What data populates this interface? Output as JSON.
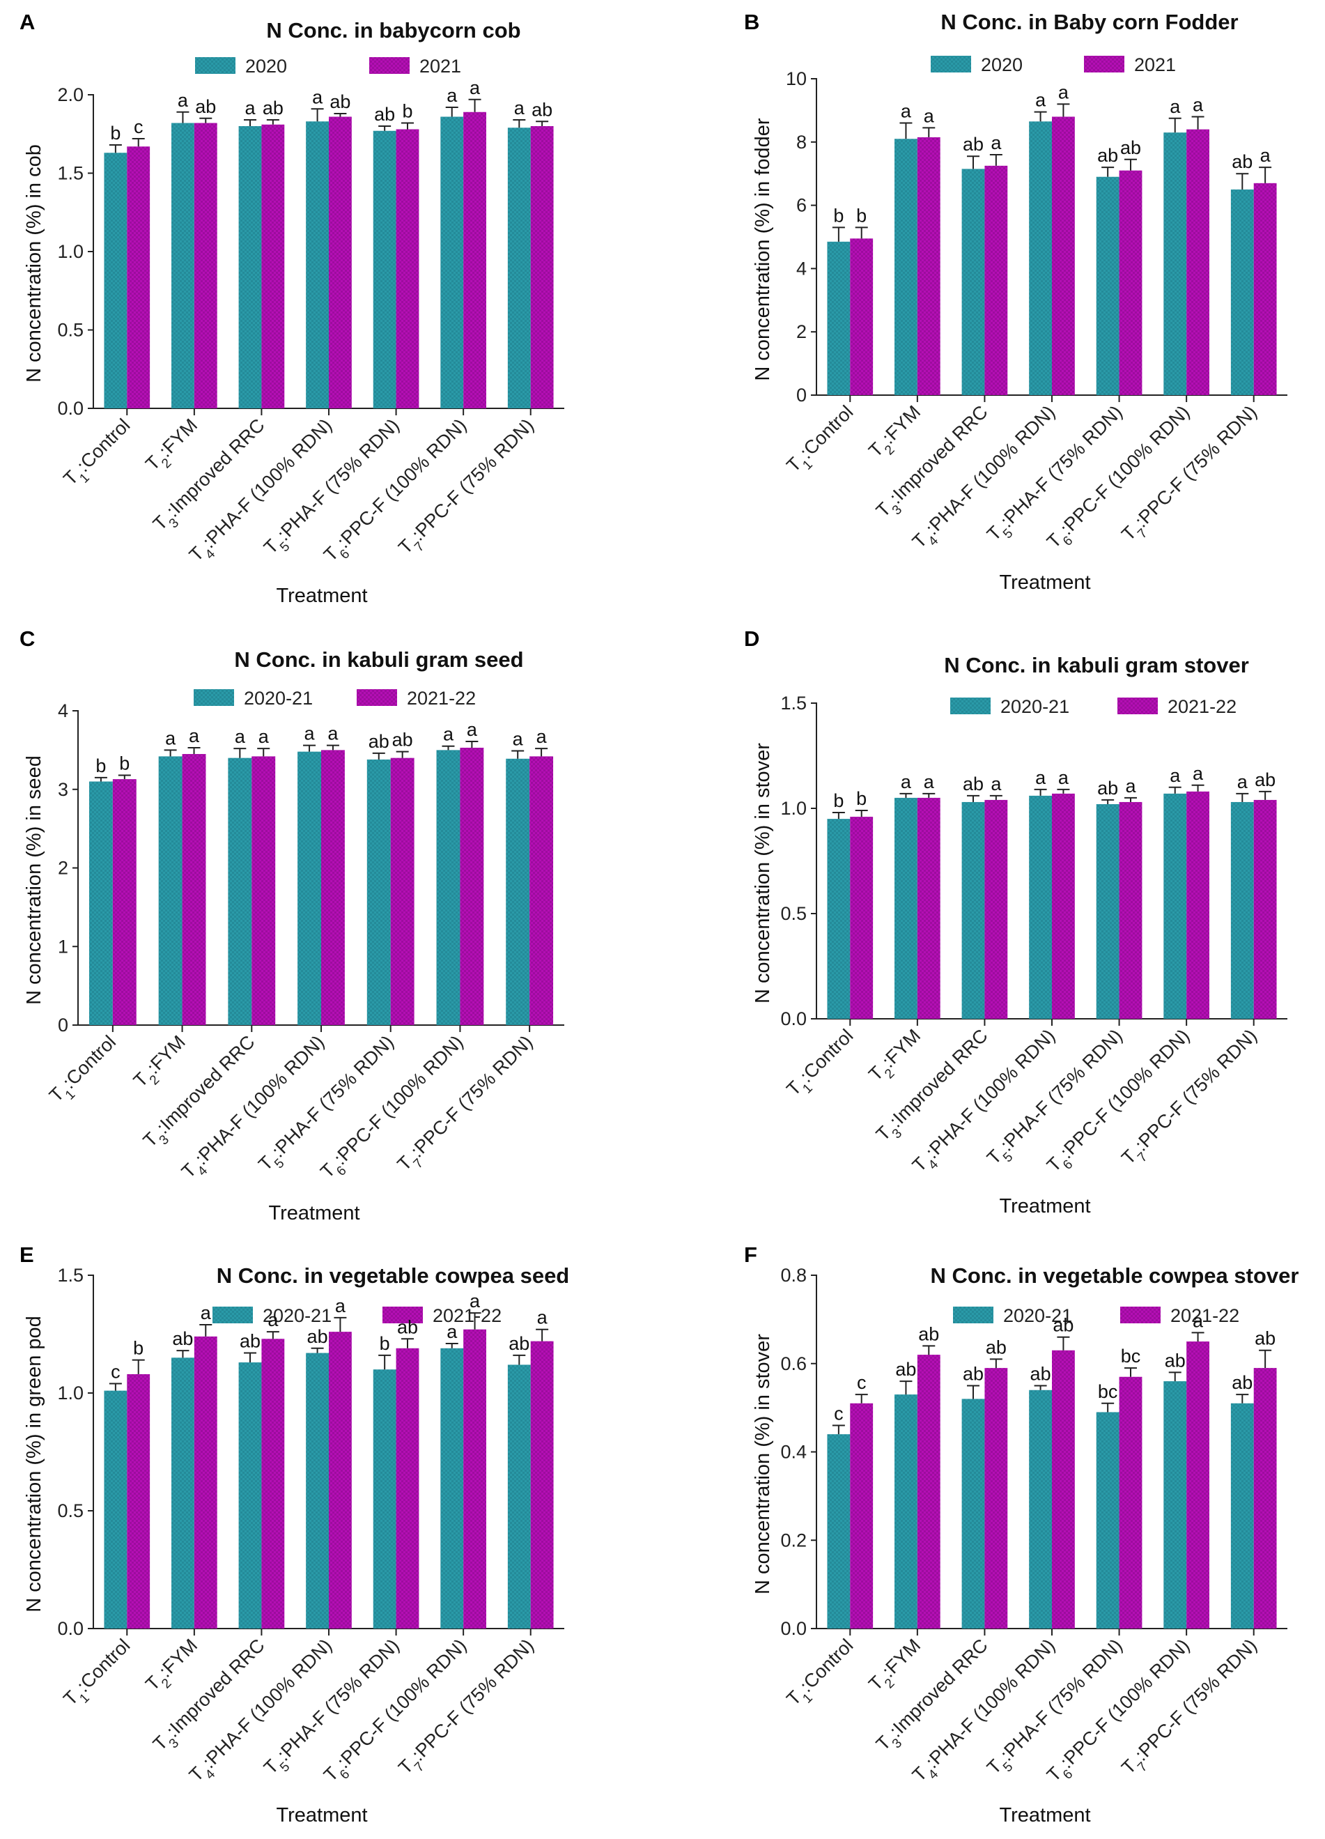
{
  "colors": {
    "series1_fill": "#2a9aa8",
    "series1_dark": "#1f7f8c",
    "series2_fill": "#b40fb4",
    "series2_dark": "#8e0a90",
    "axis": "#222222"
  },
  "chart_data": [
    {
      "panel": "A",
      "type": "bar",
      "title": "N Conc. in babycorn cob",
      "xlabel": "Treatment",
      "ylabel": "N concentration (%) in cob",
      "ylim": [
        0,
        2.0
      ],
      "yticks": [
        "0.0",
        "0.5",
        "1.0",
        "1.5",
        "2.0"
      ],
      "categories": [
        "T1:Control",
        "T2:FYM",
        "T3:Improved RRC",
        "T4:PHA-F (100% RDN)",
        "T5:PHA-F (75% RDN)",
        "T6:PPC-F (100% RDN)",
        "T7:PPC-F (75% RDN)"
      ],
      "series": [
        {
          "name": "2020",
          "values": [
            1.63,
            1.82,
            1.8,
            1.83,
            1.77,
            1.86,
            1.79
          ],
          "errors": [
            0.05,
            0.07,
            0.04,
            0.08,
            0.03,
            0.06,
            0.05
          ],
          "letters": [
            "b",
            "a",
            "a",
            "a",
            "ab",
            "a",
            "a"
          ]
        },
        {
          "name": "2021",
          "values": [
            1.67,
            1.82,
            1.81,
            1.86,
            1.78,
            1.89,
            1.8
          ],
          "errors": [
            0.05,
            0.03,
            0.03,
            0.02,
            0.04,
            0.08,
            0.03
          ],
          "letters": [
            "c",
            "ab",
            "ab",
            "ab",
            "b",
            "a",
            "ab"
          ]
        }
      ]
    },
    {
      "panel": "B",
      "type": "bar",
      "title": "N Conc. in Baby corn Fodder",
      "xlabel": "Treatment",
      "ylabel": "N concentration (%) in fodder",
      "ylim": [
        0,
        10
      ],
      "yticks": [
        "0",
        "2",
        "4",
        "6",
        "8",
        "10"
      ],
      "categories": [
        "T1:Control",
        "T2:FYM",
        "T3:Improved RRC",
        "T4:PHA-F (100% RDN)",
        "T5:PHA-F (75% RDN)",
        "T6:PPC-F (100% RDN)",
        "T7:PPC-F (75% RDN)"
      ],
      "series": [
        {
          "name": "2020",
          "values": [
            4.85,
            8.1,
            7.15,
            8.65,
            6.9,
            8.3,
            6.5
          ],
          "errors": [
            0.45,
            0.5,
            0.4,
            0.3,
            0.3,
            0.45,
            0.5
          ],
          "letters": [
            "b",
            "a",
            "ab",
            "a",
            "ab",
            "a",
            "ab"
          ]
        },
        {
          "name": "2021",
          "values": [
            4.95,
            8.15,
            7.25,
            8.8,
            7.1,
            8.4,
            6.7
          ],
          "errors": [
            0.35,
            0.3,
            0.35,
            0.4,
            0.35,
            0.4,
            0.5
          ],
          "letters": [
            "b",
            "a",
            "a",
            "a",
            "ab",
            "a",
            "a"
          ]
        }
      ]
    },
    {
      "panel": "C",
      "type": "bar",
      "title": "N Conc. in kabuli gram seed",
      "xlabel": "Treatment",
      "ylabel": "N concentration (%) in seed",
      "ylim": [
        0,
        4
      ],
      "yticks": [
        "0",
        "1",
        "2",
        "3",
        "4"
      ],
      "categories": [
        "T1:Control",
        "T2:FYM",
        "T3:Improved RRC",
        "T4:PHA-F (100% RDN)",
        "T5:PHA-F (75% RDN)",
        "T6:PPC-F (100% RDN)",
        "T7:PPC-F (75% RDN)"
      ],
      "series": [
        {
          "name": "2020-21",
          "values": [
            3.1,
            3.42,
            3.4,
            3.48,
            3.38,
            3.5,
            3.39
          ],
          "errors": [
            0.05,
            0.08,
            0.12,
            0.08,
            0.08,
            0.05,
            0.1
          ],
          "letters": [
            "b",
            "a",
            "a",
            "a",
            "ab",
            "a",
            "a"
          ]
        },
        {
          "name": "2021-22",
          "values": [
            3.13,
            3.45,
            3.42,
            3.5,
            3.4,
            3.53,
            3.42
          ],
          "errors": [
            0.05,
            0.08,
            0.1,
            0.06,
            0.08,
            0.08,
            0.1
          ],
          "letters": [
            "b",
            "a",
            "a",
            "a",
            "ab",
            "a",
            "a"
          ]
        }
      ]
    },
    {
      "panel": "D",
      "type": "bar",
      "title": "N Conc. in kabuli gram stover",
      "xlabel": "Treatment",
      "ylabel": "N concentration (%) in stover",
      "ylim": [
        0,
        1.5
      ],
      "yticks": [
        "0.0",
        "0.5",
        "1.0",
        "1.5"
      ],
      "categories": [
        "T1:Control",
        "T2:FYM",
        "T3:Improved RRC",
        "T4:PHA-F (100% RDN)",
        "T5:PHA-F (75% RDN)",
        "T6:PPC-F (100% RDN)",
        "T7:PPC-F (75% RDN)"
      ],
      "series": [
        {
          "name": "2020-21",
          "values": [
            0.95,
            1.05,
            1.03,
            1.06,
            1.02,
            1.07,
            1.03
          ],
          "errors": [
            0.03,
            0.02,
            0.03,
            0.03,
            0.02,
            0.03,
            0.04
          ],
          "letters": [
            "b",
            "a",
            "ab",
            "a",
            "ab",
            "a",
            "a"
          ]
        },
        {
          "name": "2021-22",
          "values": [
            0.96,
            1.05,
            1.04,
            1.07,
            1.03,
            1.08,
            1.04
          ],
          "errors": [
            0.03,
            0.02,
            0.02,
            0.02,
            0.02,
            0.03,
            0.04
          ],
          "letters": [
            "b",
            "a",
            "a",
            "a",
            "a",
            "a",
            "ab"
          ]
        }
      ]
    },
    {
      "panel": "E",
      "type": "bar",
      "title": "N Conc. in vegetable cowpea seed",
      "xlabel": "Treatment",
      "ylabel": "N concentration (%) in green pod",
      "ylim": [
        0,
        1.5
      ],
      "yticks": [
        "0.0",
        "0.5",
        "1.0",
        "1.5"
      ],
      "categories": [
        "T1:Control",
        "T2:FYM",
        "T3:Improved RRC",
        "T4:PHA-F (100% RDN)",
        "T5:PHA-F (75% RDN)",
        "T6:PPC-F (100% RDN)",
        "T7:PPC-F (75% RDN)"
      ],
      "series": [
        {
          "name": "2020-21",
          "values": [
            1.01,
            1.15,
            1.13,
            1.17,
            1.1,
            1.19,
            1.12
          ],
          "errors": [
            0.03,
            0.03,
            0.04,
            0.02,
            0.06,
            0.02,
            0.04
          ],
          "letters": [
            "c",
            "ab",
            "ab",
            "ab",
            "b",
            "a",
            "ab"
          ]
        },
        {
          "name": "2021-22",
          "values": [
            1.08,
            1.24,
            1.23,
            1.26,
            1.19,
            1.27,
            1.22
          ],
          "errors": [
            0.06,
            0.05,
            0.03,
            0.06,
            0.04,
            0.07,
            0.05
          ],
          "letters": [
            "b",
            "a",
            "a",
            "a",
            "ab",
            "a",
            "a"
          ]
        }
      ]
    },
    {
      "panel": "F",
      "type": "bar",
      "title": "N Conc. in vegetable cowpea stover",
      "xlabel": "Treatment",
      "ylabel": "N concentration (%) in stover",
      "ylim": [
        0,
        0.8
      ],
      "yticks": [
        "0.0",
        "0.2",
        "0.4",
        "0.6",
        "0.8"
      ],
      "categories": [
        "T1:Control",
        "T2:FYM",
        "T3:Improved RRC",
        "T4:PHA-F (100% RDN)",
        "T5:PHA-F (75% RDN)",
        "T6:PPC-F (100% RDN)",
        "T7:PPC-F (75% RDN)"
      ],
      "series": [
        {
          "name": "2020-21",
          "values": [
            0.44,
            0.53,
            0.52,
            0.54,
            0.49,
            0.56,
            0.51
          ],
          "errors": [
            0.02,
            0.03,
            0.03,
            0.01,
            0.02,
            0.02,
            0.02
          ],
          "letters": [
            "c",
            "ab",
            "ab",
            "ab",
            "bc",
            "ab",
            "ab"
          ]
        },
        {
          "name": "2021-22",
          "values": [
            0.51,
            0.62,
            0.59,
            0.63,
            0.57,
            0.65,
            0.59
          ],
          "errors": [
            0.02,
            0.02,
            0.02,
            0.03,
            0.02,
            0.02,
            0.04
          ],
          "letters": [
            "c",
            "ab",
            "ab",
            "ab",
            "bc",
            "a",
            "ab"
          ]
        }
      ]
    }
  ]
}
